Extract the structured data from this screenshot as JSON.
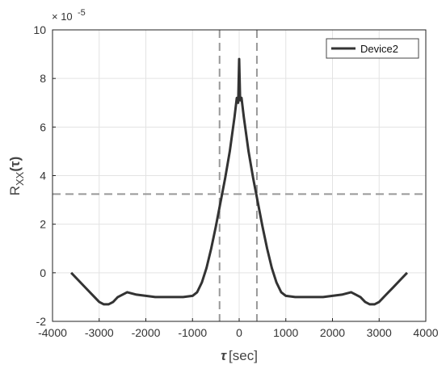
{
  "chart_data": {
    "type": "line",
    "xlabel_symbol": "τ",
    "xlabel_unit": "[sec]",
    "ylabel_main": "R",
    "ylabel_sub": "XX",
    "ylabel_arg": "(τ)",
    "y_exponent_base": "× 10",
    "y_exponent": "-5",
    "xlim": [
      -4000,
      4000
    ],
    "ylim": [
      -2,
      10
    ],
    "x_ticks": [
      "-4000",
      "-3000",
      "-2000",
      "-1000",
      "0",
      "1000",
      "2000",
      "3000",
      "4000"
    ],
    "y_ticks": [
      "-2",
      "0",
      "2",
      "4",
      "6",
      "8",
      "10"
    ],
    "grid": true,
    "legend_position": "top-right",
    "series": [
      {
        "name": "Device2",
        "color": "#333333",
        "x": [
          -3600,
          -3450,
          -3300,
          -3150,
          -3000,
          -2900,
          -2800,
          -2700,
          -2600,
          -2500,
          -2400,
          -2300,
          -2200,
          -2000,
          -1800,
          -1600,
          -1400,
          -1200,
          -1000,
          -900,
          -800,
          -700,
          -600,
          -500,
          -400,
          -300,
          -200,
          -100,
          -50,
          -20,
          0,
          20,
          50,
          100,
          200,
          300,
          400,
          500,
          600,
          700,
          800,
          900,
          1000,
          1200,
          1400,
          1600,
          1800,
          2000,
          2200,
          2300,
          2400,
          2500,
          2600,
          2700,
          2800,
          2900,
          3000,
          3150,
          3300,
          3450,
          3600
        ],
        "values": [
          0,
          -0.3,
          -0.6,
          -0.9,
          -1.2,
          -1.3,
          -1.3,
          -1.2,
          -1.0,
          -0.9,
          -0.8,
          -0.85,
          -0.9,
          -0.95,
          -1.0,
          -1.0,
          -1.0,
          -1.0,
          -0.95,
          -0.8,
          -0.4,
          0.2,
          1.0,
          1.9,
          2.9,
          3.9,
          5.0,
          6.4,
          7.2,
          7.0,
          8.8,
          7.1,
          7.2,
          6.4,
          5.0,
          3.9,
          2.9,
          1.9,
          1.0,
          0.2,
          -0.4,
          -0.8,
          -0.95,
          -1.0,
          -1.0,
          -1.0,
          -1.0,
          -0.95,
          -0.9,
          -0.85,
          -0.8,
          -0.9,
          -1.0,
          -1.2,
          -1.3,
          -1.3,
          -1.2,
          -0.9,
          -0.6,
          -0.3,
          0
        ]
      }
    ],
    "reference_lines": {
      "horizontal_y": 3.24,
      "vertical_x": [
        -420,
        380
      ],
      "color": "#999999"
    }
  }
}
